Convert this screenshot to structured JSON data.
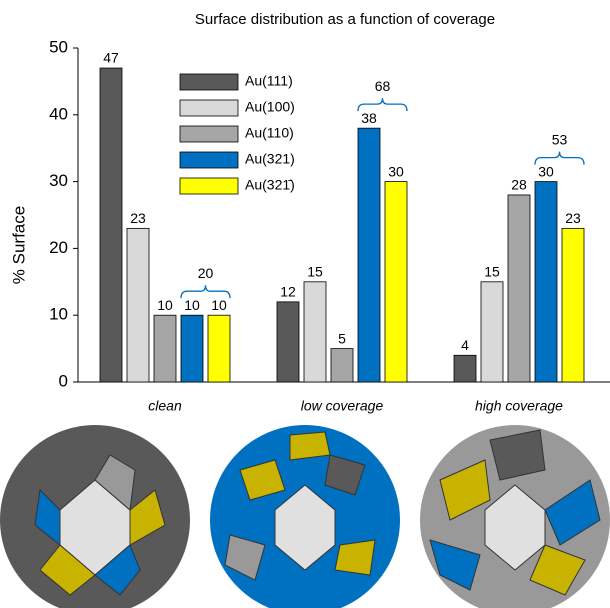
{
  "chart_data": {
    "type": "bar",
    "title": "Surface distribution as a function of coverage",
    "y_label": "% Surface",
    "categories": [
      "clean",
      "low coverage",
      "high coverage"
    ],
    "series": [
      {
        "name": "Au(111)",
        "color": "#595959",
        "label_color": "#000000",
        "values": [
          47,
          12,
          4
        ]
      },
      {
        "name": "Au(100)",
        "color": "#d9d9d9",
        "label_color": "#000000",
        "values": [
          23,
          15,
          15
        ]
      },
      {
        "name": "Au(110)",
        "color": "#a6a6a6",
        "label_color": "#000000",
        "values": [
          10,
          5,
          28
        ]
      },
      {
        "name": "Au(321)",
        "color": "#0070c0",
        "label_color": "#0070c0",
        "values": [
          10,
          38,
          30
        ]
      },
      {
        "name": "Au(321̄)",
        "color": "#ffff00",
        "label_color": "#0070c0",
        "values": [
          10,
          30,
          23
        ]
      }
    ],
    "group_totals": [
      20,
      68,
      53
    ],
    "ylim": [
      0,
      50
    ],
    "yticks": [
      0,
      10,
      20,
      30,
      40,
      50
    ],
    "grid": false
  }
}
